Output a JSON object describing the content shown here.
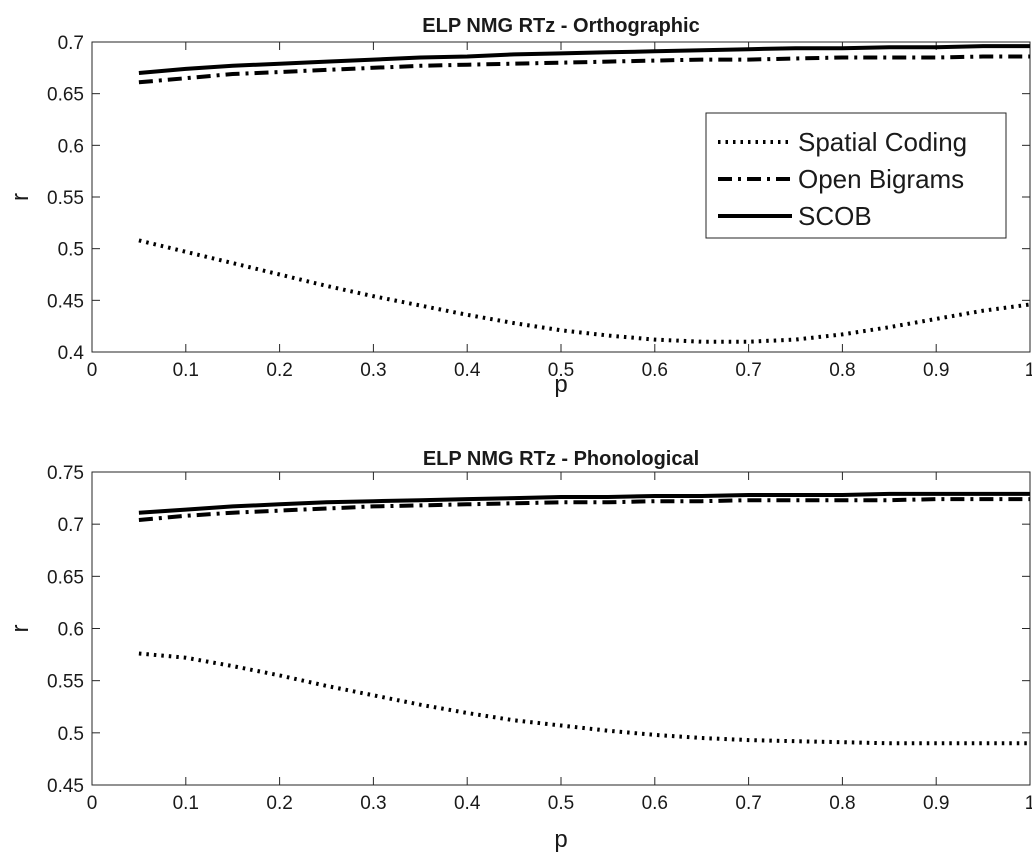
{
  "chart_data": [
    {
      "type": "line",
      "title": "ELP NMG RTz - Orthographic",
      "xlabel": "p",
      "ylabel": "r",
      "xlim": [
        0,
        1
      ],
      "ylim": [
        0.4,
        0.7
      ],
      "xticks": [
        "0",
        "0.1",
        "0.2",
        "0.3",
        "0.4",
        "0.5",
        "0.6",
        "0.7",
        "0.8",
        "0.9",
        "1"
      ],
      "yticks": [
        "0.4",
        "0.45",
        "0.5",
        "0.55",
        "0.6",
        "0.65",
        "0.7"
      ],
      "grid": false,
      "legend": "right",
      "x": [
        0.05,
        0.1,
        0.15,
        0.2,
        0.25,
        0.3,
        0.35,
        0.4,
        0.45,
        0.5,
        0.55,
        0.6,
        0.65,
        0.7,
        0.75,
        0.8,
        0.85,
        0.9,
        0.95,
        1.0
      ],
      "series": [
        {
          "name": "Spatial Coding",
          "style": "dotted",
          "values": [
            0.508,
            0.497,
            0.486,
            0.475,
            0.464,
            0.454,
            0.445,
            0.436,
            0.428,
            0.421,
            0.416,
            0.412,
            0.41,
            0.41,
            0.412,
            0.417,
            0.424,
            0.432,
            0.44,
            0.446
          ]
        },
        {
          "name": "Open Bigrams",
          "style": "dashdot",
          "values": [
            0.661,
            0.665,
            0.669,
            0.671,
            0.673,
            0.675,
            0.677,
            0.678,
            0.679,
            0.68,
            0.681,
            0.682,
            0.683,
            0.683,
            0.684,
            0.685,
            0.685,
            0.685,
            0.686,
            0.686
          ]
        },
        {
          "name": "SCOB",
          "style": "solid",
          "values": [
            0.67,
            0.674,
            0.677,
            0.679,
            0.681,
            0.683,
            0.685,
            0.686,
            0.688,
            0.689,
            0.69,
            0.691,
            0.692,
            0.693,
            0.694,
            0.694,
            0.695,
            0.695,
            0.696,
            0.696
          ]
        }
      ]
    },
    {
      "type": "line",
      "title": "ELP NMG RTz - Phonological",
      "xlabel": "p",
      "ylabel": "r",
      "xlim": [
        0,
        1
      ],
      "ylim": [
        0.45,
        0.75
      ],
      "xticks": [
        "0",
        "0.1",
        "0.2",
        "0.3",
        "0.4",
        "0.5",
        "0.6",
        "0.7",
        "0.8",
        "0.9",
        "1"
      ],
      "yticks": [
        "0.45",
        "0.5",
        "0.55",
        "0.6",
        "0.65",
        "0.7",
        "0.75"
      ],
      "grid": false,
      "x": [
        0.05,
        0.1,
        0.15,
        0.2,
        0.25,
        0.3,
        0.35,
        0.4,
        0.45,
        0.5,
        0.55,
        0.6,
        0.65,
        0.7,
        0.75,
        0.8,
        0.85,
        0.9,
        0.95,
        1.0
      ],
      "series": [
        {
          "style": "dotted",
          "values": [
            0.576,
            0.572,
            0.564,
            0.555,
            0.545,
            0.536,
            0.527,
            0.519,
            0.512,
            0.507,
            0.502,
            0.498,
            0.495,
            0.493,
            0.492,
            0.491,
            0.49,
            0.49,
            0.49,
            0.49
          ]
        },
        {
          "style": "dashdot",
          "values": [
            0.704,
            0.708,
            0.711,
            0.713,
            0.715,
            0.717,
            0.718,
            0.719,
            0.72,
            0.721,
            0.721,
            0.722,
            0.722,
            0.723,
            0.723,
            0.723,
            0.723,
            0.724,
            0.724,
            0.724
          ]
        },
        {
          "style": "solid",
          "values": [
            0.711,
            0.714,
            0.717,
            0.719,
            0.721,
            0.722,
            0.723,
            0.724,
            0.725,
            0.726,
            0.726,
            0.727,
            0.727,
            0.728,
            0.728,
            0.728,
            0.729,
            0.729,
            0.729,
            0.729
          ]
        }
      ]
    }
  ]
}
